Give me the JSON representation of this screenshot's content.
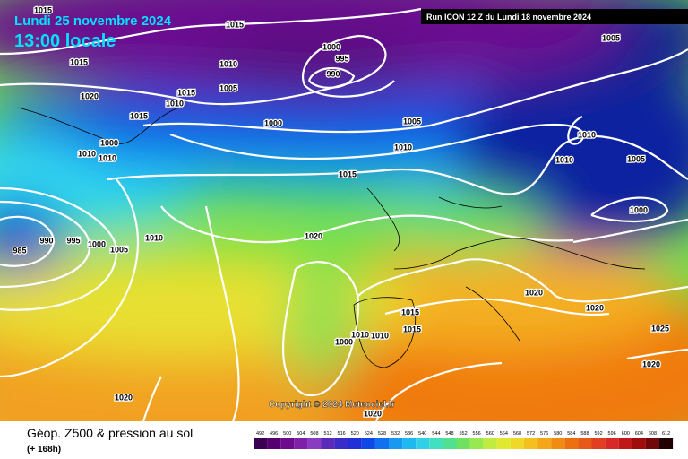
{
  "header": {
    "date": "Lundi 25 novembre 2024",
    "time": "13:00 locale",
    "run": "Run ICON 12 Z du Lundi 18 novembre 2024"
  },
  "isobar_labels": [
    "1015",
    "1015",
    "1000",
    "995",
    "990",
    "1010",
    "1005",
    "1015",
    "1020",
    "1015",
    "1010",
    "1015",
    "1000",
    "1005",
    "1010",
    "1015",
    "1005",
    "1010",
    "1010",
    "1005",
    "1000",
    "1000",
    "1010",
    "1010",
    "985",
    "990",
    "995",
    "1000",
    "1005",
    "1010",
    "1020",
    "1020",
    "1020",
    "1025",
    "1015",
    "1000",
    "1010",
    "1010",
    "1015",
    "1020",
    "1020",
    "1020"
  ],
  "copyright": "Copyright © 2024 Meteociel.fr",
  "footer": {
    "title": "Géop. Z500 & pression au sol",
    "lead": "(+ 168h)"
  },
  "scale": [
    492,
    496,
    500,
    504,
    508,
    512,
    516,
    520,
    524,
    528,
    532,
    536,
    540,
    544,
    548,
    552,
    556,
    560,
    564,
    568,
    572,
    576,
    580,
    584,
    588,
    592,
    596,
    600,
    604,
    608,
    612
  ]
}
